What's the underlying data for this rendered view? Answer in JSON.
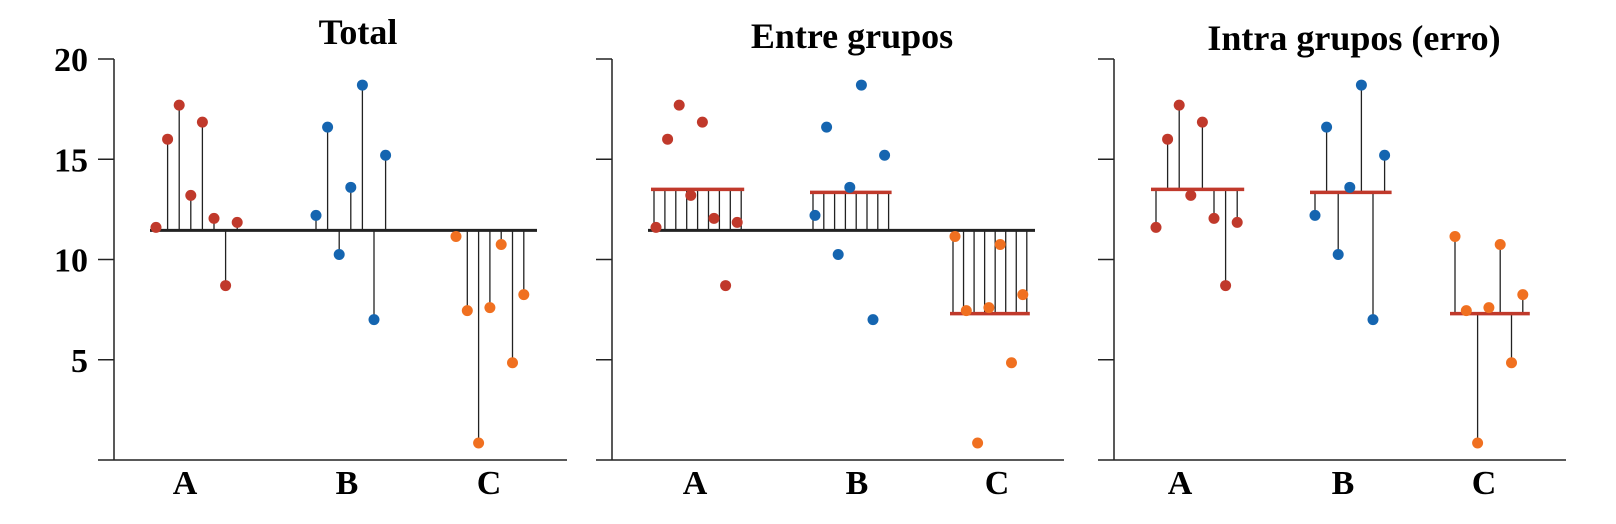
{
  "chart_data": {
    "type": "scatter",
    "ylim": [
      0,
      20
    ],
    "yticks": [
      5,
      10,
      15,
      20
    ],
    "categories": [
      "A",
      "B",
      "C"
    ],
    "colors": {
      "A": "#c0392b",
      "B": "#1565b0",
      "C": "#f07020"
    },
    "mean_line_color": "#c0392b",
    "grand_mean": 11.45,
    "group_means": {
      "A": 13.5,
      "B": 13.35,
      "C": 7.3
    },
    "groups": {
      "A": [
        11.6,
        16.0,
        17.7,
        13.2,
        16.85,
        12.05,
        8.7,
        11.85
      ],
      "B": [
        12.2,
        16.6,
        10.25,
        13.6,
        18.7,
        7.0,
        15.2
      ],
      "C": [
        11.15,
        7.45,
        0.85,
        7.6,
        10.75,
        4.85,
        8.25
      ]
    },
    "panels": [
      {
        "title": "Total",
        "mode": "total"
      },
      {
        "title": "Entre grupos",
        "mode": "between"
      },
      {
        "title": "Intra grupos (erro)",
        "mode": "within"
      }
    ]
  }
}
